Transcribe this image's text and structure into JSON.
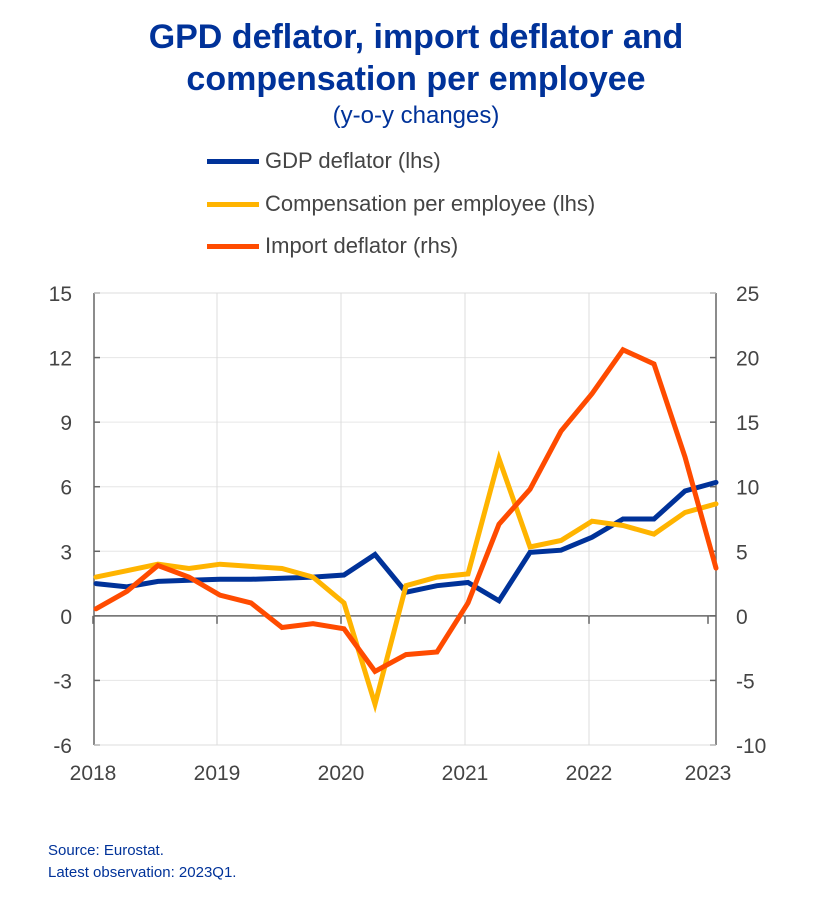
{
  "chart_data": {
    "type": "line",
    "title": "GPD deflator, import deflator and compensation per employee",
    "title_lines": [
      "GPD deflator, import deflator and",
      "compensation per employee"
    ],
    "subtitle": "(y-o-y changes)",
    "x": [
      "2018Q1",
      "2018Q2",
      "2018Q3",
      "2018Q4",
      "2019Q1",
      "2019Q2",
      "2019Q3",
      "2019Q4",
      "2020Q1",
      "2020Q2",
      "2020Q3",
      "2020Q4",
      "2021Q1",
      "2021Q2",
      "2021Q3",
      "2021Q4",
      "2022Q1",
      "2022Q2",
      "2022Q3",
      "2022Q4",
      "2023Q1"
    ],
    "x_tick_labels": [
      "2018",
      "2019",
      "2020",
      "2021",
      "2022",
      "2023"
    ],
    "y_left": {
      "range": [
        -6,
        15
      ],
      "ticks": [
        "15",
        "12",
        "9",
        "6",
        "3",
        "0",
        "-3",
        "-6"
      ]
    },
    "y_right": {
      "range": [
        -10,
        25
      ],
      "ticks": [
        "25",
        "20",
        "15",
        "10",
        "5",
        "0",
        "-5",
        "-10"
      ]
    },
    "grid": true,
    "legend_placement": "top",
    "series": [
      {
        "name": "GDP deflator (lhs)",
        "axis": "left",
        "color": "#003299",
        "values": [
          1.5,
          1.35,
          1.6,
          1.65,
          1.7,
          1.7,
          1.75,
          1.8,
          1.9,
          2.85,
          1.1,
          1.4,
          1.55,
          0.7,
          2.95,
          3.05,
          3.65,
          4.5,
          4.5,
          5.8,
          6.2
        ]
      },
      {
        "name": "Compensation per employee (lhs)",
        "axis": "left",
        "color": "#FFB400",
        "values": [
          1.8,
          2.1,
          2.4,
          2.2,
          2.4,
          2.3,
          2.2,
          1.8,
          0.6,
          -4.1,
          1.4,
          1.8,
          1.95,
          7.3,
          3.2,
          3.5,
          4.4,
          4.2,
          3.8,
          4.8,
          5.2
        ]
      },
      {
        "name": "Import deflator (rhs)",
        "axis": "right",
        "color": "#FF4B00",
        "values": [
          0.55,
          1.9,
          3.9,
          3.0,
          1.6,
          1.0,
          -0.9,
          -0.6,
          -1.0,
          -4.3,
          -3.0,
          -2.8,
          1.0,
          7.1,
          9.8,
          14.3,
          17.2,
          20.6,
          19.5,
          12.3,
          3.7
        ]
      }
    ]
  },
  "footer": {
    "source": "Source: Eurostat.",
    "latest": "Latest observation: 2023Q1."
  }
}
